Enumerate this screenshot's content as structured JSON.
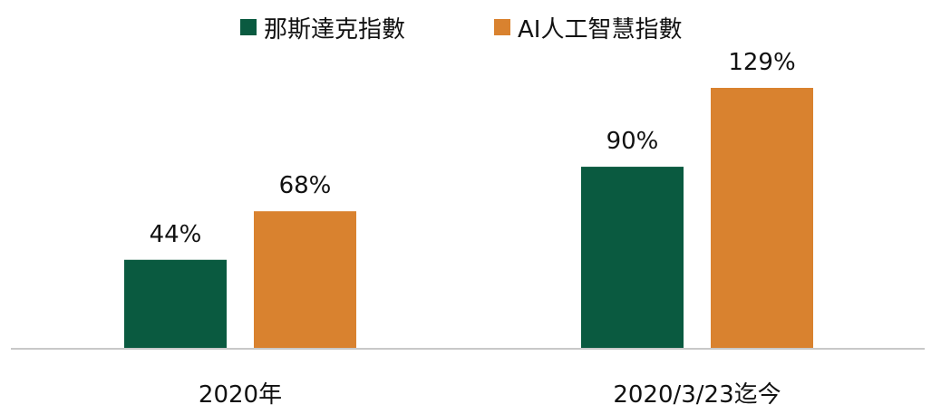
{
  "chart_data": {
    "type": "bar",
    "title": "",
    "xlabel": "",
    "ylabel": "",
    "categories": [
      "2020年",
      "2020/3/23迄今"
    ],
    "series": [
      {
        "name": "那斯達克指數",
        "color": "#0a5a40",
        "values": [
          44,
          90
        ],
        "labels": [
          "44%",
          "90%"
        ]
      },
      {
        "name": "AI人工智慧指數",
        "color": "#d9822f",
        "values": [
          68,
          129
        ],
        "labels": [
          "68%",
          "129%"
        ]
      }
    ],
    "ylim": [
      0,
      129
    ],
    "unit": "%",
    "grid": false,
    "legend_position": "top-center"
  }
}
